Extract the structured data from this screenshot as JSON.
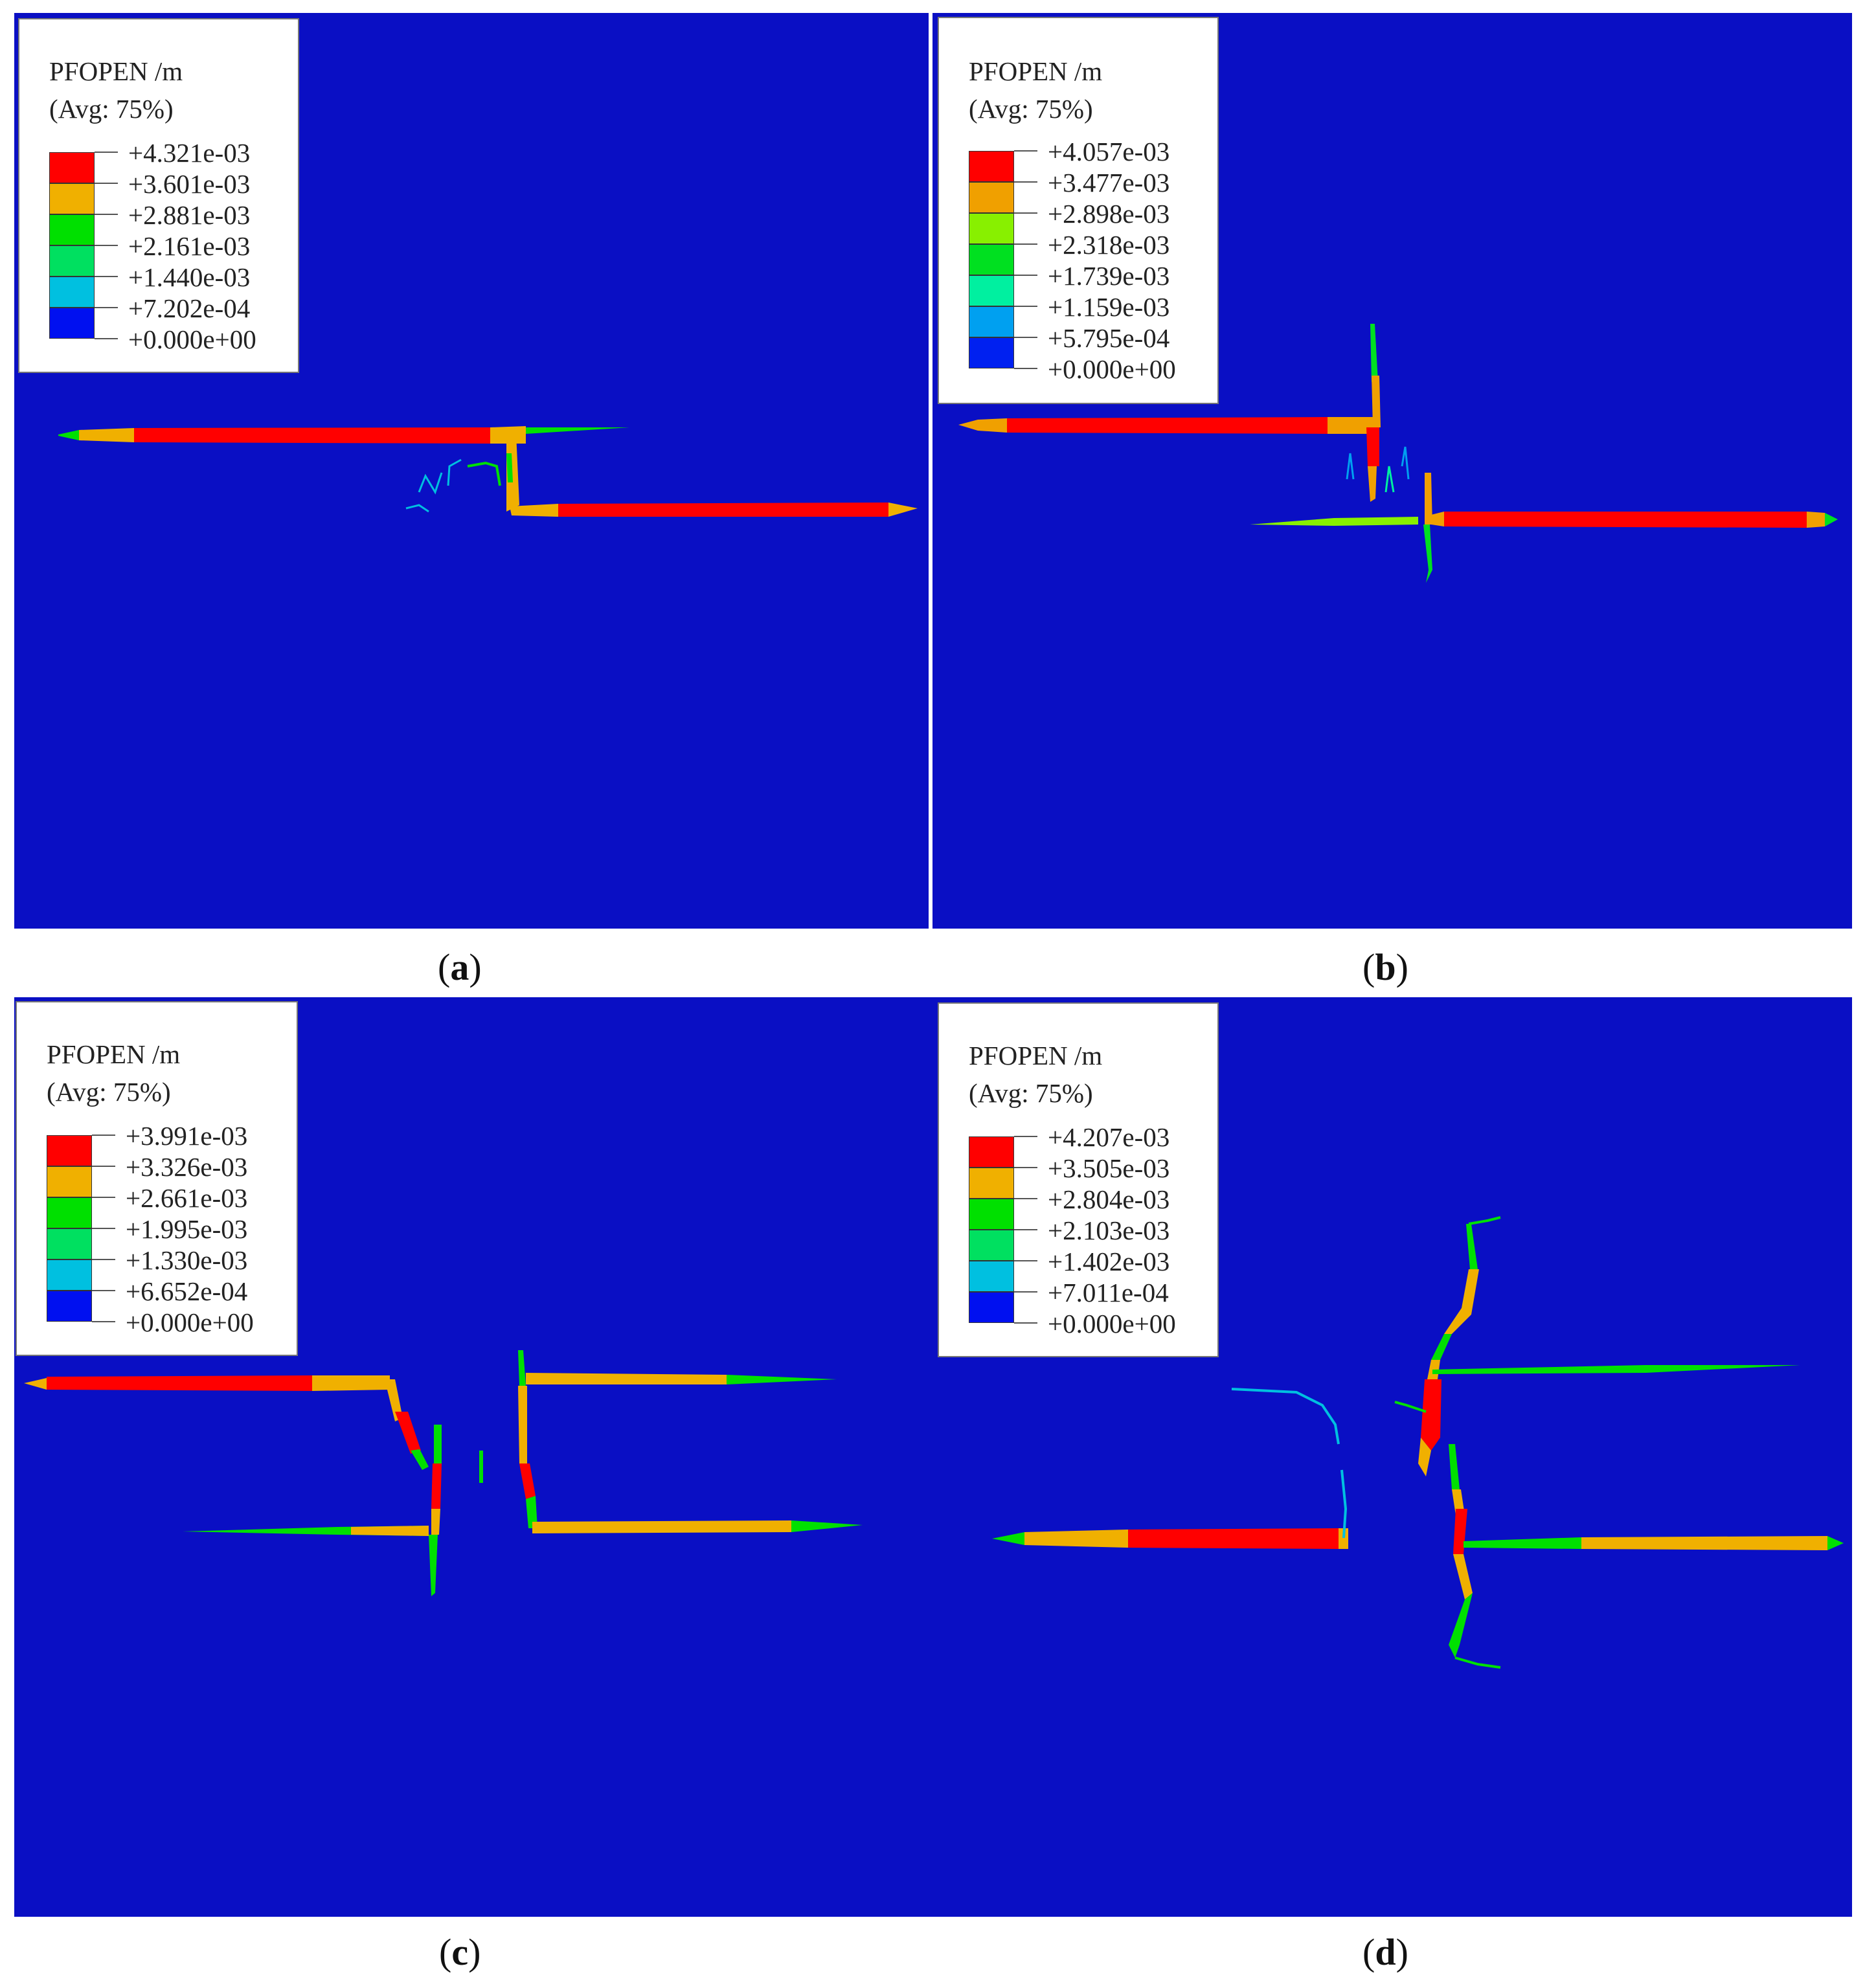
{
  "colors": {
    "background": "#0a0fc4",
    "legend_fill": "#ffffff"
  },
  "panels": [
    {
      "id": "a",
      "caption_letter": "a",
      "legend": {
        "title": "PFOPEN /m",
        "subtitle": "(Avg: 75%)",
        "values": [
          "+4.321e-03",
          "+3.601e-03",
          "+2.881e-03",
          "+2.161e-03",
          "+1.440e-03",
          "+7.202e-04",
          "+0.000e+00"
        ],
        "colors": [
          "#ff0000",
          "#f0b000",
          "#00e000",
          "#00e060",
          "#00c0e0",
          "#0010f0"
        ]
      }
    },
    {
      "id": "b",
      "caption_letter": "b",
      "legend": {
        "title": "PFOPEN /m",
        "subtitle": "(Avg: 75%)",
        "values": [
          "+4.057e-03",
          "+3.477e-03",
          "+2.898e-03",
          "+2.318e-03",
          "+1.739e-03",
          "+1.159e-03",
          "+5.795e-04",
          "+0.000e+00"
        ],
        "colors": [
          "#ff0000",
          "#f0a000",
          "#88f000",
          "#00e020",
          "#00f0a0",
          "#00a0f0",
          "#0020f0"
        ]
      }
    },
    {
      "id": "c",
      "caption_letter": "c",
      "legend": {
        "title": "PFOPEN /m",
        "subtitle": "(Avg: 75%)",
        "values": [
          "+3.991e-03",
          "+3.326e-03",
          "+2.661e-03",
          "+1.995e-03",
          "+1.330e-03",
          "+6.652e-04",
          "+0.000e+00"
        ],
        "colors": [
          "#ff0000",
          "#f0b000",
          "#00e000",
          "#00e060",
          "#00c0e0",
          "#0010f0"
        ]
      }
    },
    {
      "id": "d",
      "caption_letter": "d",
      "legend": {
        "title": "PFOPEN /m",
        "subtitle": "(Avg: 75%)",
        "values": [
          "+4.207e-03",
          "+3.505e-03",
          "+2.804e-03",
          "+2.103e-03",
          "+1.402e-03",
          "+7.011e-04",
          "+0.000e+00"
        ],
        "colors": [
          "#ff0000",
          "#f0b000",
          "#00e000",
          "#00e060",
          "#00c0e0",
          "#0010f0"
        ]
      }
    }
  ]
}
